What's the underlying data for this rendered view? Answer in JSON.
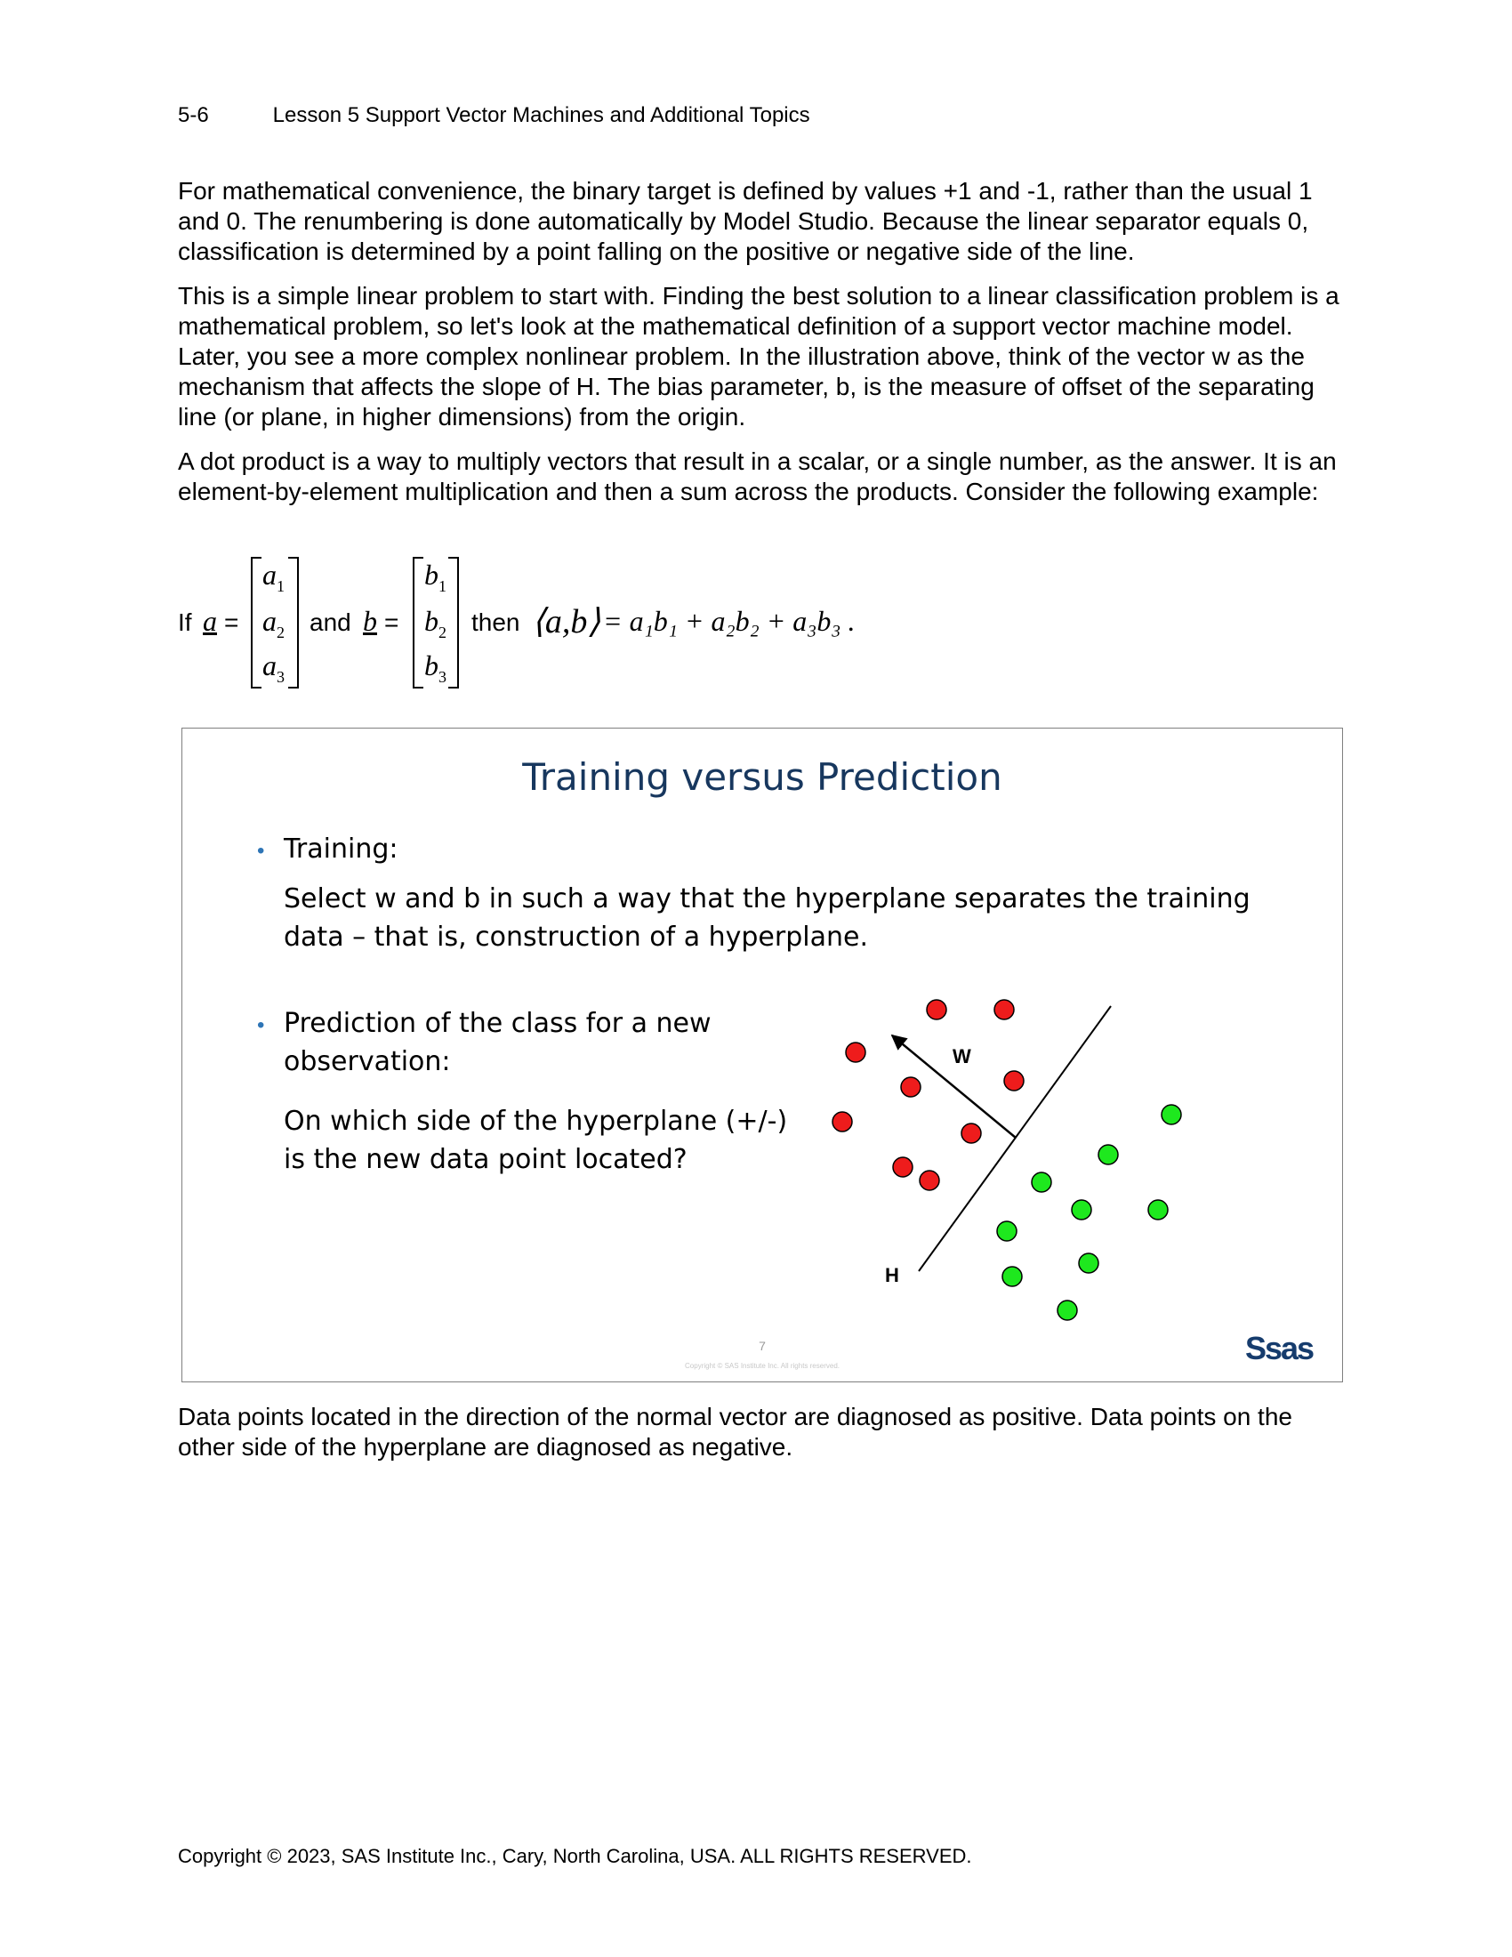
{
  "header": {
    "page_number": "5-6",
    "lesson_title": "Lesson 5  Support Vector Machines and Additional Topics"
  },
  "paragraphs": [
    "For mathematical convenience, the binary target is defined by values +1 and -1, rather than the usual 1 and 0. The renumbering is done automatically by Model Studio. Because the linear separator equals 0, classification is determined by a point falling on the positive or negative side of the line.",
    "This is a simple linear problem to start with. Finding the best solution to a linear classification problem is a mathematical problem, so let's look at the mathematical definition of a support vector machine model. Later, you see a more complex nonlinear problem. In the illustration above, think of the vector w as the mechanism that affects the slope of H. The bias parameter, b, is the measure of offset of the separating line (or plane, in higher dimensions) from the origin.",
    "A dot product is a way to multiply vectors that result in a scalar, or a single number, as the answer. It is an element-by-element multiplication and then a sum across the products. Consider the following example:"
  ],
  "equation": {
    "if_text": "If",
    "vec_a": "a",
    "equals": "=",
    "and_text": "and",
    "vec_b": "b",
    "then_text": "then",
    "a_entries": [
      "a",
      "a",
      "a"
    ],
    "b_entries": [
      "b",
      "b",
      "b"
    ],
    "subs": [
      "1",
      "2",
      "3"
    ],
    "inner_product": "⟨a,b⟩",
    "result": "= a₁b₁ + a₂b₂ + a₃b₃ ."
  },
  "slide": {
    "title": "Training versus Prediction",
    "bullet1_heading": "Training:",
    "bullet1_line1": "Select w and b in such a way that the hyperplane separates the training",
    "bullet1_line2": "data – that is, construction of a hyperplane.",
    "bullet2_line1": "Prediction of the class for a new",
    "bullet2_line2": "observation:",
    "bullet2_q1": "On which side of the hyperplane (+/-)",
    "bullet2_q2": "is the new data point located?",
    "diagram": {
      "w_label": "W",
      "h_label": "H",
      "negative_color": "#ee1c1c",
      "positive_color": "#1ee81e"
    },
    "slide_number": "7",
    "slide_copyright": "Copyright © SAS Institute Inc. All rights reserved.",
    "logo_text": "Ssas"
  },
  "closing_paragraph": "Data points located in the direction of the normal vector are diagnosed as positive. Data points on the other side of the hyperplane are diagnosed as negative.",
  "footer": "Copyright © 2023, SAS Institute Inc., Cary, North Carolina, USA. ALL RIGHTS RESERVED."
}
